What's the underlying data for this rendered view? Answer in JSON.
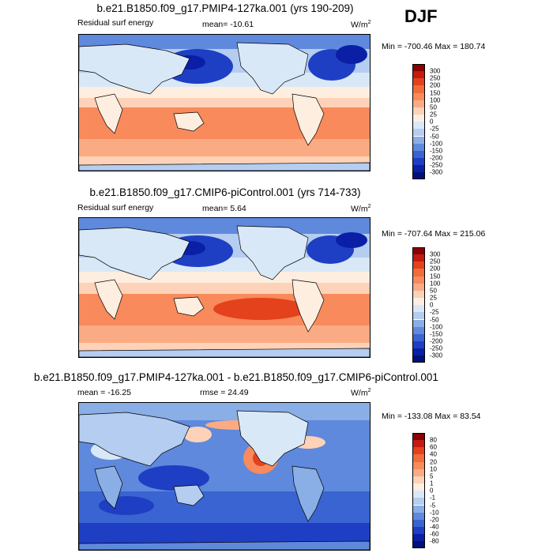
{
  "season": "DJF",
  "panels": [
    {
      "title": "b.e21.B1850.f09_g17.PMIP4-127ka.001 (yrs 190-209)",
      "left_label": "Residual surf energy",
      "center_label": "mean= -10.61",
      "units": "W/m",
      "units_sup": "2",
      "minmax": "Min = -700.46 Max = 180.74",
      "colorbar": {
        "levels": [
          "300",
          "250",
          "200",
          "150",
          "100",
          "50",
          "25",
          "0",
          "-25",
          "-50",
          "-100",
          "-150",
          "-200",
          "-250",
          "-300"
        ],
        "colors": [
          "#8b0000",
          "#c41a0f",
          "#e4421c",
          "#f26b3a",
          "#f88a5c",
          "#fbab83",
          "#fdd2b8",
          "#fdeee0",
          "#d9e8f7",
          "#b4cdf0",
          "#8aaee6",
          "#5f89dc",
          "#3a64d2",
          "#1e3fc4",
          "#0a1fa6",
          "#00117a"
        ]
      },
      "mean": "-10.61"
    },
    {
      "title": "b.e21.B1850.f09_g17.CMIP6-piControl.001 (yrs 714-733)",
      "left_label": "Residual surf energy",
      "center_label": "mean=   5.64",
      "units": "W/m",
      "units_sup": "2",
      "minmax": "Min = -707.64 Max = 215.06",
      "colorbar": {
        "levels": [
          "300",
          "250",
          "200",
          "150",
          "100",
          "50",
          "25",
          "0",
          "-25",
          "-50",
          "-100",
          "-150",
          "-200",
          "-250",
          "-300"
        ],
        "colors": [
          "#8b0000",
          "#c41a0f",
          "#e4421c",
          "#f26b3a",
          "#f88a5c",
          "#fbab83",
          "#fdd2b8",
          "#fdeee0",
          "#d9e8f7",
          "#b4cdf0",
          "#8aaee6",
          "#5f89dc",
          "#3a64d2",
          "#1e3fc4",
          "#0a1fa6",
          "#00117a"
        ]
      },
      "mean": "5.64"
    },
    {
      "title": "b.e21.B1850.f09_g17.PMIP4-127ka.001 - b.e21.B1850.f09_g17.CMIP6-piControl.001",
      "left_label": "mean = -16.25",
      "center_label": "rmse =  24.49",
      "units": "W/m",
      "units_sup": "2",
      "minmax": "Min = -133.08 Max =  83.54",
      "colorbar": {
        "levels": [
          "80",
          "60",
          "40",
          "20",
          "10",
          "5",
          "1",
          "0",
          "-1",
          "-5",
          "-10",
          "-20",
          "-40",
          "-60",
          "-80"
        ],
        "colors": [
          "#8b0000",
          "#c41a0f",
          "#e4421c",
          "#f26b3a",
          "#f88a5c",
          "#fbab83",
          "#fdd2b8",
          "#fdeee0",
          "#d9e8f7",
          "#b4cdf0",
          "#8aaee6",
          "#5f89dc",
          "#3a64d2",
          "#1e3fc4",
          "#0a1fa6",
          "#00117a"
        ]
      }
    }
  ]
}
